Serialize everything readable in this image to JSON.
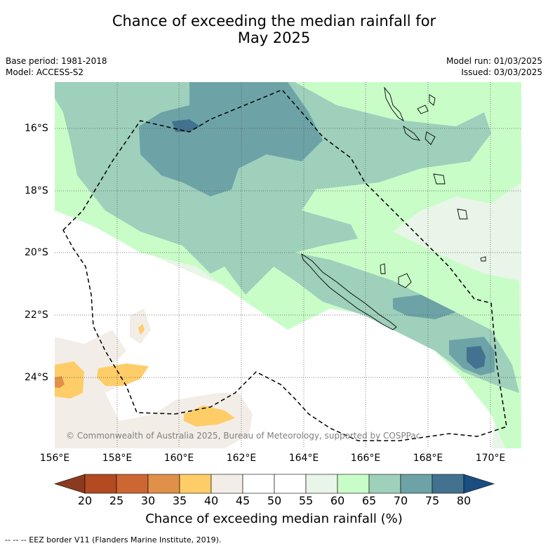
{
  "title_line1": "Chance of exceeding the median rainfall for",
  "title_line2": "May 2025",
  "meta": {
    "base_period": "Base period: 1981-2018",
    "model": "Model: ACCESS-S2",
    "model_run": "Model run: 01/03/2025",
    "issued": "Issued: 03/03/2025"
  },
  "latitude_labels": [
    "16°S",
    "18°S",
    "20°S",
    "22°S",
    "24°S"
  ],
  "longitude_labels": [
    "156°E",
    "158°E",
    "160°E",
    "162°E",
    "164°E",
    "166°E",
    "168°E",
    "170°E"
  ],
  "copyright": "© Commonwealth of Australia 2025, Bureau of Meteorology, supported by COSPPac",
  "colorbar": {
    "ticks": [
      "20",
      "25",
      "30",
      "35",
      "40",
      "45",
      "50",
      "55",
      "60",
      "65",
      "70",
      "75",
      "80"
    ],
    "colors": [
      "#8b3a20",
      "#b34a22",
      "#cc6633",
      "#e09048",
      "#fecd68",
      "#f2ede6",
      "#ffffff",
      "#ffffff",
      "#e8f5e8",
      "#c9fdc8",
      "#9ed0bb",
      "#6da3a6",
      "#42728f",
      "#1a4d80"
    ],
    "label": "Chance of exceeding median rainfall (%)"
  },
  "footer": "-- -- -- EEZ border V11 (Flanders Marine Institute, 2019).",
  "map_colors": {
    "pale_green": "#c9fdc8",
    "teal_light": "#9ed0bb",
    "teal_mid": "#6da3a6",
    "teal_dark": "#42728f",
    "very_light_green": "#e8f5e8",
    "beige": "#f2ede6",
    "yellow": "#fecd68",
    "orange": "#e09048"
  }
}
